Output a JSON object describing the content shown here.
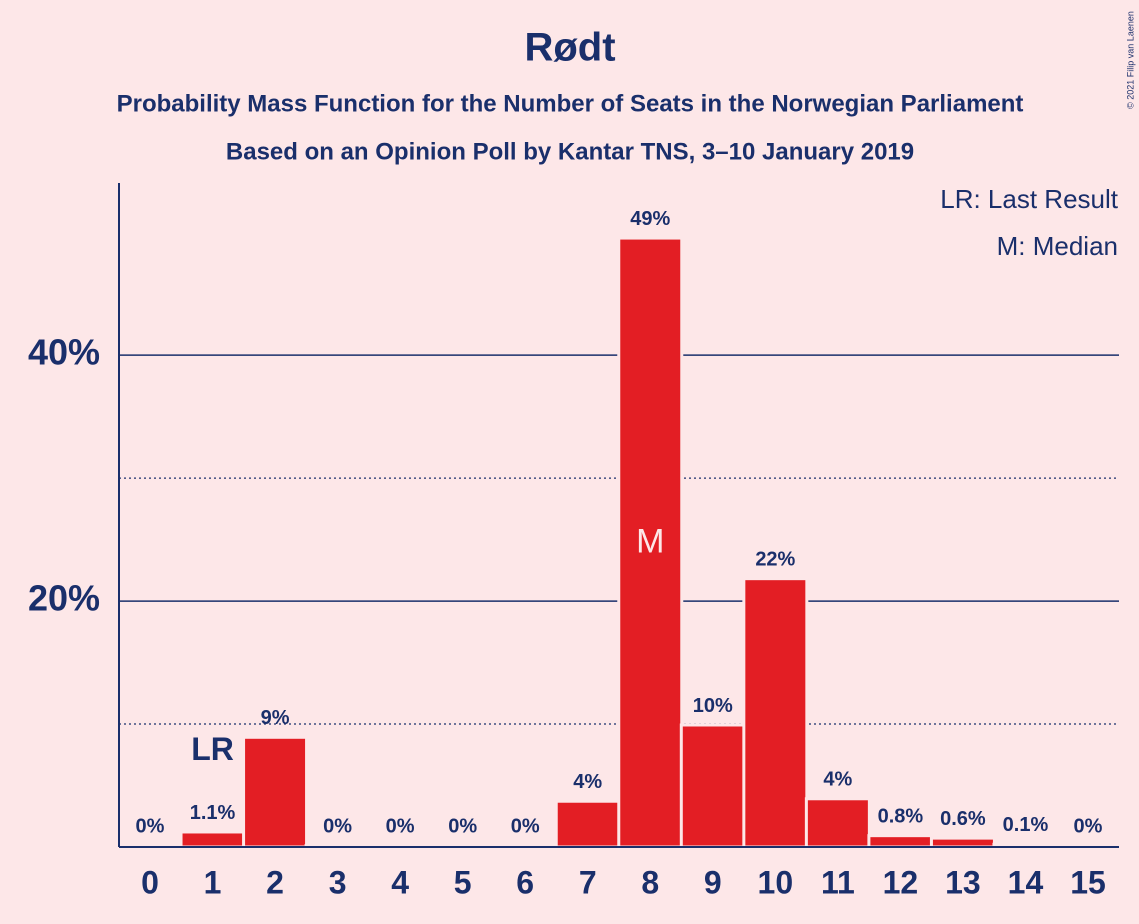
{
  "chart_data": {
    "type": "bar",
    "title": "Rødt",
    "subtitle": [
      "Probability Mass Function for the Number of Seats in the Norwegian Parliament",
      "Based on an Opinion Poll by Kantar TNS, 3–10 January 2019"
    ],
    "categories": [
      "0",
      "1",
      "2",
      "3",
      "4",
      "5",
      "6",
      "7",
      "8",
      "9",
      "10",
      "11",
      "12",
      "13",
      "14",
      "15"
    ],
    "values": [
      0,
      1.1,
      8.8,
      0,
      0,
      0,
      0,
      3.6,
      49.4,
      9.8,
      21.7,
      3.8,
      0.8,
      0.6,
      0.1,
      0
    ],
    "value_labels": [
      "0%",
      "1.1%",
      "9%",
      "0%",
      "0%",
      "0%",
      "0%",
      "4%",
      "49%",
      "10%",
      "22%",
      "4%",
      "0.8%",
      "0.6%",
      "0.1%",
      "0%"
    ],
    "color": "#e31e24",
    "ylim": [
      0,
      54
    ],
    "yticks": [
      {
        "value": 20,
        "label": "20%"
      },
      {
        "value": 40,
        "label": "40%"
      }
    ],
    "minor_grid": [
      10,
      30
    ],
    "annotations": [
      {
        "text": "LR",
        "category": "1"
      },
      {
        "text": "M",
        "category": "8"
      }
    ],
    "legend": [
      "LR: Last Result",
      "M: Median"
    ],
    "credit": "© 2021 Filip van Laenen"
  }
}
